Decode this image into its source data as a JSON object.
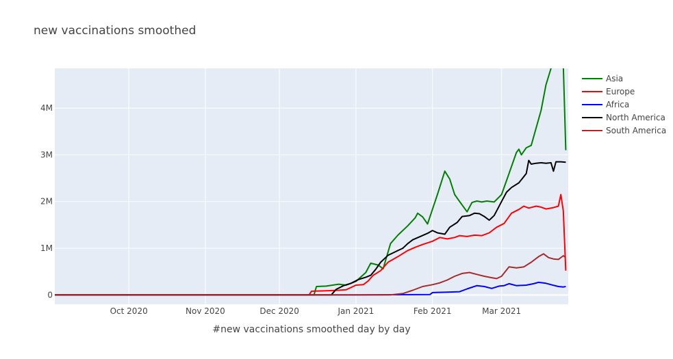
{
  "chart_data": {
    "type": "line",
    "title": "new vaccinations smoothed",
    "xlabel": "#new vaccinations smoothed day by day",
    "ylabel": "",
    "x_range": [
      "2020-09-01",
      "2021-03-28"
    ],
    "ylim": [
      -200000,
      4850000
    ],
    "x_ticks": [
      {
        "date": "2020-10-01",
        "label": "Oct 2020"
      },
      {
        "date": "2020-11-01",
        "label": "Nov 2020"
      },
      {
        "date": "2020-12-01",
        "label": "Dec 2020"
      },
      {
        "date": "2021-01-01",
        "label": "Jan 2021"
      },
      {
        "date": "2021-02-01",
        "label": "Feb 2021"
      },
      {
        "date": "2021-03-01",
        "label": "Mar 2021"
      }
    ],
    "y_ticks": [
      {
        "value": 0,
        "label": "0"
      },
      {
        "value": 1000000,
        "label": "1M"
      },
      {
        "value": 2000000,
        "label": "2M"
      },
      {
        "value": 3000000,
        "label": "3M"
      },
      {
        "value": 4000000,
        "label": "4M"
      }
    ],
    "grid": true,
    "legend_position": "top-right",
    "series": [
      {
        "name": "Asia",
        "color": "#008000",
        "points": [
          [
            "2020-09-01",
            0
          ],
          [
            "2020-12-15",
            0
          ],
          [
            "2020-12-16",
            180000
          ],
          [
            "2020-12-20",
            190000
          ],
          [
            "2020-12-25",
            230000
          ],
          [
            "2020-12-28",
            210000
          ],
          [
            "2021-01-01",
            290000
          ],
          [
            "2021-01-05",
            480000
          ],
          [
            "2021-01-07",
            680000
          ],
          [
            "2021-01-10",
            640000
          ],
          [
            "2021-01-12",
            560000
          ],
          [
            "2021-01-15",
            1100000
          ],
          [
            "2021-01-18",
            1280000
          ],
          [
            "2021-01-22",
            1480000
          ],
          [
            "2021-01-25",
            1650000
          ],
          [
            "2021-01-26",
            1750000
          ],
          [
            "2021-01-28",
            1670000
          ],
          [
            "2021-01-30",
            1520000
          ],
          [
            "2021-02-03",
            2150000
          ],
          [
            "2021-02-06",
            2650000
          ],
          [
            "2021-02-08",
            2480000
          ],
          [
            "2021-02-10",
            2150000
          ],
          [
            "2021-02-12",
            2000000
          ],
          [
            "2021-02-15",
            1780000
          ],
          [
            "2021-02-17",
            1980000
          ],
          [
            "2021-02-19",
            2010000
          ],
          [
            "2021-02-21",
            1990000
          ],
          [
            "2021-02-23",
            2010000
          ],
          [
            "2021-02-26",
            1990000
          ],
          [
            "2021-03-01",
            2150000
          ],
          [
            "2021-03-03",
            2450000
          ],
          [
            "2021-03-05",
            2750000
          ],
          [
            "2021-03-07",
            3050000
          ],
          [
            "2021-03-08",
            3120000
          ],
          [
            "2021-03-09",
            3000000
          ],
          [
            "2021-03-11",
            3150000
          ],
          [
            "2021-03-13",
            3200000
          ],
          [
            "2021-03-17",
            3950000
          ],
          [
            "2021-03-19",
            4500000
          ],
          [
            "2021-03-21",
            4850000
          ],
          [
            "2021-03-25",
            5200000
          ],
          [
            "2021-03-26",
            4900000
          ],
          [
            "2021-03-27",
            3100000
          ]
        ]
      },
      {
        "name": "Europe",
        "color": "#ff0000",
        "points": [
          [
            "2020-09-01",
            0
          ],
          [
            "2020-12-13",
            0
          ],
          [
            "2020-12-14",
            80000
          ],
          [
            "2020-12-20",
            90000
          ],
          [
            "2020-12-25",
            100000
          ],
          [
            "2020-12-28",
            110000
          ],
          [
            "2021-01-01",
            210000
          ],
          [
            "2021-01-04",
            220000
          ],
          [
            "2021-01-06",
            300000
          ],
          [
            "2021-01-08",
            420000
          ],
          [
            "2021-01-11",
            520000
          ],
          [
            "2021-01-14",
            700000
          ],
          [
            "2021-01-18",
            820000
          ],
          [
            "2021-01-22",
            950000
          ],
          [
            "2021-01-25",
            1020000
          ],
          [
            "2021-01-28",
            1080000
          ],
          [
            "2021-02-01",
            1150000
          ],
          [
            "2021-02-04",
            1230000
          ],
          [
            "2021-02-07",
            1200000
          ],
          [
            "2021-02-10",
            1230000
          ],
          [
            "2021-02-12",
            1270000
          ],
          [
            "2021-02-15",
            1250000
          ],
          [
            "2021-02-18",
            1280000
          ],
          [
            "2021-02-21",
            1270000
          ],
          [
            "2021-02-24",
            1330000
          ],
          [
            "2021-02-27",
            1450000
          ],
          [
            "2021-03-02",
            1530000
          ],
          [
            "2021-03-05",
            1750000
          ],
          [
            "2021-03-08",
            1830000
          ],
          [
            "2021-03-10",
            1900000
          ],
          [
            "2021-03-12",
            1860000
          ],
          [
            "2021-03-15",
            1900000
          ],
          [
            "2021-03-17",
            1880000
          ],
          [
            "2021-03-19",
            1840000
          ],
          [
            "2021-03-22",
            1870000
          ],
          [
            "2021-03-24",
            1900000
          ],
          [
            "2021-03-25",
            2150000
          ],
          [
            "2021-03-26",
            1800000
          ],
          [
            "2021-03-27",
            520000
          ]
        ]
      },
      {
        "name": "Africa",
        "color": "#0000ff",
        "points": [
          [
            "2020-09-01",
            0
          ],
          [
            "2021-01-01",
            0
          ],
          [
            "2021-01-31",
            10000
          ],
          [
            "2021-02-01",
            50000
          ],
          [
            "2021-02-07",
            60000
          ],
          [
            "2021-02-12",
            70000
          ],
          [
            "2021-02-15",
            130000
          ],
          [
            "2021-02-19",
            200000
          ],
          [
            "2021-02-22",
            180000
          ],
          [
            "2021-02-25",
            140000
          ],
          [
            "2021-02-28",
            190000
          ],
          [
            "2021-03-02",
            200000
          ],
          [
            "2021-03-04",
            240000
          ],
          [
            "2021-03-07",
            200000
          ],
          [
            "2021-03-11",
            210000
          ],
          [
            "2021-03-14",
            240000
          ],
          [
            "2021-03-16",
            270000
          ],
          [
            "2021-03-19",
            250000
          ],
          [
            "2021-03-21",
            220000
          ],
          [
            "2021-03-24",
            180000
          ],
          [
            "2021-03-26",
            170000
          ],
          [
            "2021-03-27",
            180000
          ]
        ]
      },
      {
        "name": "North America",
        "color": "#000000",
        "points": [
          [
            "2020-09-01",
            0
          ],
          [
            "2020-12-22",
            0
          ],
          [
            "2020-12-24",
            120000
          ],
          [
            "2020-12-27",
            200000
          ],
          [
            "2020-12-30",
            250000
          ],
          [
            "2021-01-02",
            330000
          ],
          [
            "2021-01-05",
            380000
          ],
          [
            "2021-01-07",
            420000
          ],
          [
            "2021-01-09",
            550000
          ],
          [
            "2021-01-11",
            700000
          ],
          [
            "2021-01-14",
            850000
          ],
          [
            "2021-01-16",
            900000
          ],
          [
            "2021-01-18",
            950000
          ],
          [
            "2021-01-20",
            1000000
          ],
          [
            "2021-01-22",
            1100000
          ],
          [
            "2021-01-24",
            1180000
          ],
          [
            "2021-01-27",
            1250000
          ],
          [
            "2021-01-30",
            1320000
          ],
          [
            "2021-02-01",
            1380000
          ],
          [
            "2021-02-03",
            1330000
          ],
          [
            "2021-02-06",
            1300000
          ],
          [
            "2021-02-08",
            1450000
          ],
          [
            "2021-02-11",
            1550000
          ],
          [
            "2021-02-13",
            1680000
          ],
          [
            "2021-02-16",
            1700000
          ],
          [
            "2021-02-18",
            1750000
          ],
          [
            "2021-02-20",
            1740000
          ],
          [
            "2021-02-22",
            1680000
          ],
          [
            "2021-02-24",
            1600000
          ],
          [
            "2021-02-26",
            1700000
          ],
          [
            "2021-03-01",
            2000000
          ],
          [
            "2021-03-03",
            2200000
          ],
          [
            "2021-03-05",
            2300000
          ],
          [
            "2021-03-08",
            2400000
          ],
          [
            "2021-03-11",
            2600000
          ],
          [
            "2021-03-12",
            2880000
          ],
          [
            "2021-03-13",
            2800000
          ],
          [
            "2021-03-15",
            2820000
          ],
          [
            "2021-03-17",
            2830000
          ],
          [
            "2021-03-19",
            2820000
          ],
          [
            "2021-03-21",
            2830000
          ],
          [
            "2021-03-22",
            2650000
          ],
          [
            "2021-03-23",
            2850000
          ],
          [
            "2021-03-25",
            2850000
          ],
          [
            "2021-03-27",
            2840000
          ]
        ]
      },
      {
        "name": "South America",
        "color": "#a52a2a",
        "points": [
          [
            "2020-09-01",
            0
          ],
          [
            "2021-01-15",
            0
          ],
          [
            "2021-01-20",
            30000
          ],
          [
            "2021-01-24",
            100000
          ],
          [
            "2021-01-28",
            180000
          ],
          [
            "2021-02-01",
            220000
          ],
          [
            "2021-02-04",
            260000
          ],
          [
            "2021-02-07",
            320000
          ],
          [
            "2021-02-10",
            400000
          ],
          [
            "2021-02-13",
            460000
          ],
          [
            "2021-02-16",
            480000
          ],
          [
            "2021-02-19",
            440000
          ],
          [
            "2021-02-22",
            400000
          ],
          [
            "2021-02-25",
            370000
          ],
          [
            "2021-02-27",
            350000
          ],
          [
            "2021-03-01",
            400000
          ],
          [
            "2021-03-04",
            600000
          ],
          [
            "2021-03-07",
            580000
          ],
          [
            "2021-03-10",
            600000
          ],
          [
            "2021-03-13",
            700000
          ],
          [
            "2021-03-16",
            820000
          ],
          [
            "2021-03-18",
            880000
          ],
          [
            "2021-03-20",
            800000
          ],
          [
            "2021-03-22",
            770000
          ],
          [
            "2021-03-24",
            760000
          ],
          [
            "2021-03-26",
            840000
          ],
          [
            "2021-03-27",
            800000
          ]
        ]
      }
    ]
  }
}
